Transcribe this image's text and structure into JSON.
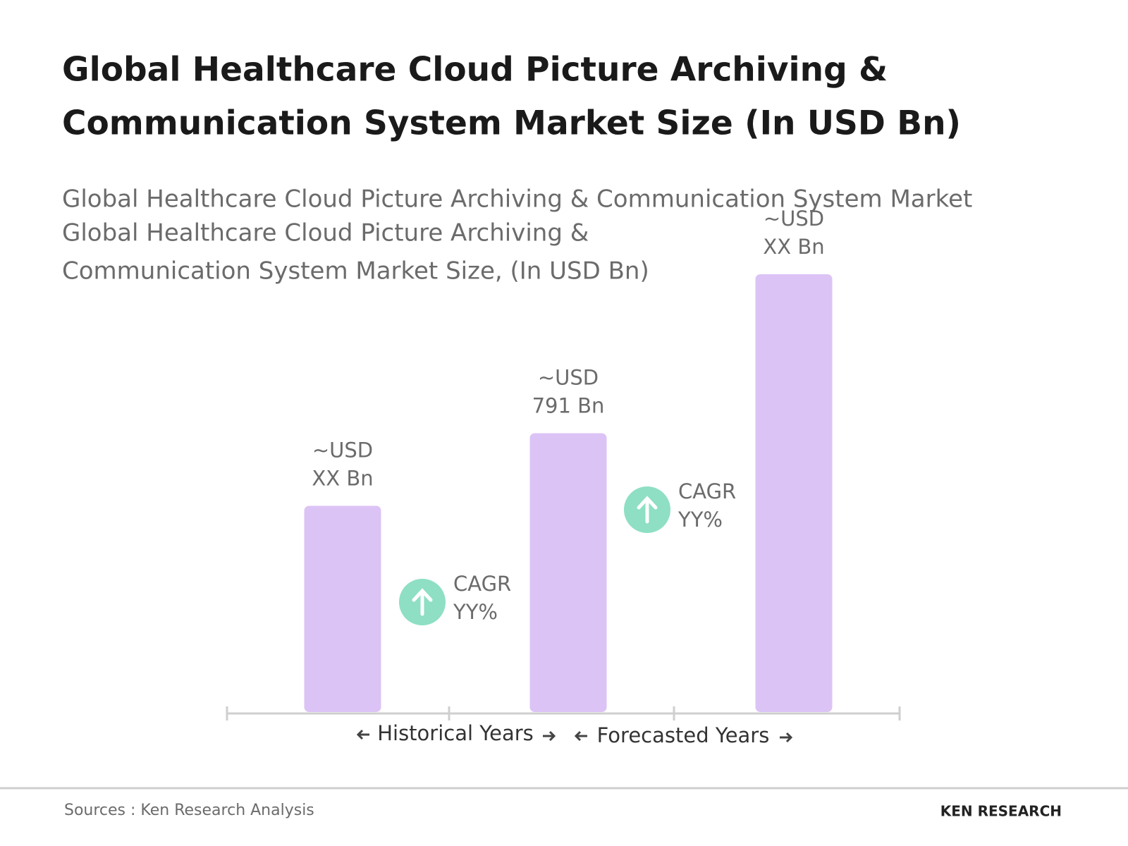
{
  "chart_data": {
    "type": "bar",
    "title": [
      "Global Healthcare Cloud Picture Archiving &",
      "Communication System Market Size (In USD Bn)"
    ],
    "subtitle": [
      "Global Healthcare Cloud Picture Archiving & Communication System Market",
      "Global Healthcare Cloud Picture Archiving &",
      "Communication System Market Size, (In USD Bn)"
    ],
    "categories": [
      null,
      null,
      null
    ],
    "values": [
      585,
      791,
      1242
    ],
    "value_labels": [
      [
        "~USD",
        "XX Bn"
      ],
      [
        "~USD",
        "791 Bn"
      ],
      [
        "~USD",
        "XX Bn"
      ]
    ],
    "color": "#dcc3f5",
    "annotations": [
      [
        "CAGR",
        "YY%"
      ],
      [
        "CAGR",
        "YY%"
      ]
    ],
    "annotation_color": "#8edfc4",
    "periods": [
      "Historical Years",
      "Forecasted Years"
    ],
    "source": "Sources : Ken Research Analysis",
    "logo": "KEN RESEARCH"
  }
}
